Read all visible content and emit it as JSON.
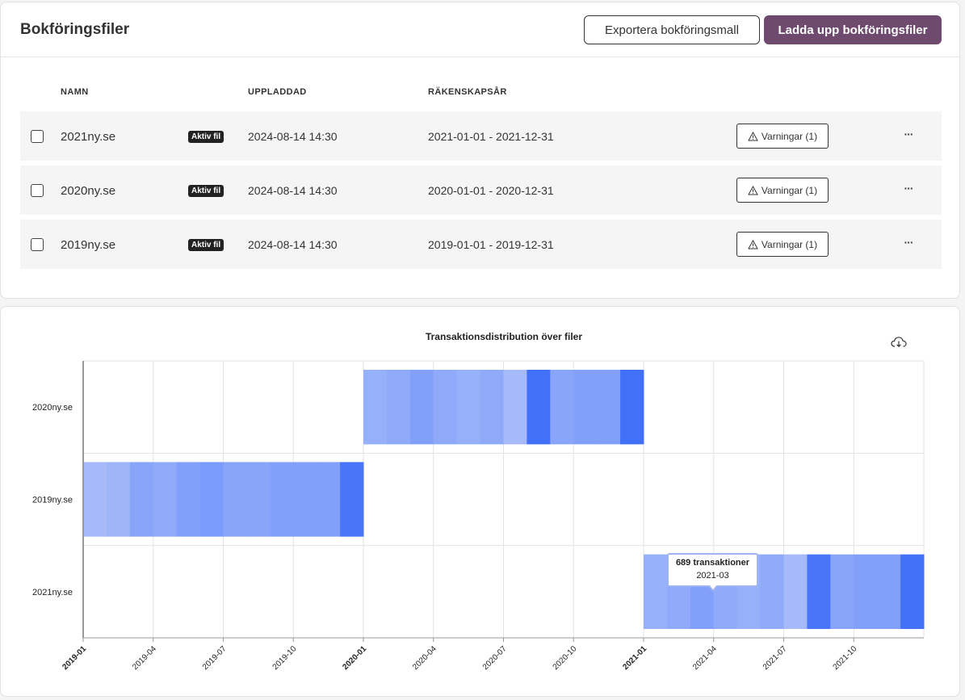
{
  "header": {
    "title": "Bokföringsfiler",
    "export_label": "Exportera bokföringsmall",
    "upload_label": "Ladda upp bokföringsfiler"
  },
  "table": {
    "columns": {
      "name": "NAMN",
      "uploaded": "UPPLADDAD",
      "fiscal_year": "RÄKENSKAPSÅR"
    },
    "rows": [
      {
        "name": "2021ny.se",
        "badge": "Aktiv fil",
        "uploaded": "2024-08-14 14:30",
        "fiscal_year": "2021-01-01 - 2021-12-31",
        "warnings": "Varningar (1)",
        "more": "···"
      },
      {
        "name": "2020ny.se",
        "badge": "Aktiv fil",
        "uploaded": "2024-08-14 14:30",
        "fiscal_year": "2020-01-01 - 2020-12-31",
        "warnings": "Varningar (1)",
        "more": "···"
      },
      {
        "name": "2019ny.se",
        "badge": "Aktiv fil",
        "uploaded": "2024-08-14 14:30",
        "fiscal_year": "2019-01-01 - 2019-12-31",
        "warnings": "Varningar (1)",
        "more": "···"
      }
    ]
  },
  "tooltip": {
    "line1": "689 transaktioner",
    "line2": "2021-03"
  },
  "chart_data": {
    "type": "heatmap",
    "title": "Transaktionsdistribution över filer",
    "x_range": [
      "2019-01",
      "2022-01"
    ],
    "x_ticks": [
      "2019-01",
      "2019-04",
      "2019-07",
      "2019-10",
      "2020-01",
      "2020-04",
      "2020-07",
      "2020-10",
      "2021-01",
      "2021-04",
      "2021-07",
      "2021-10"
    ],
    "x_bold_ticks": [
      "2019-01",
      "2020-01",
      "2021-01"
    ],
    "y_categories": [
      "2020ny.se",
      "2019ny.se",
      "2021ny.se"
    ],
    "series": [
      {
        "name": "2020ny.se",
        "start": "2020-01",
        "intensity": [
          0.3,
          0.35,
          0.45,
          0.35,
          0.3,
          0.35,
          0.2,
          0.9,
          0.4,
          0.45,
          0.45,
          0.9
        ]
      },
      {
        "name": "2019ny.se",
        "start": "2019-01",
        "intensity": [
          0.2,
          0.25,
          0.4,
          0.35,
          0.45,
          0.5,
          0.4,
          0.4,
          0.45,
          0.45,
          0.45,
          0.85
        ]
      },
      {
        "name": "2021ny.se",
        "start": "2021-01",
        "intensity": [
          0.3,
          0.35,
          0.45,
          0.35,
          0.3,
          0.35,
          0.2,
          0.85,
          0.4,
          0.45,
          0.45,
          0.9
        ]
      }
    ],
    "colors": {
      "low": "#c2cffb",
      "high": "#3466f8"
    },
    "grid": true
  }
}
